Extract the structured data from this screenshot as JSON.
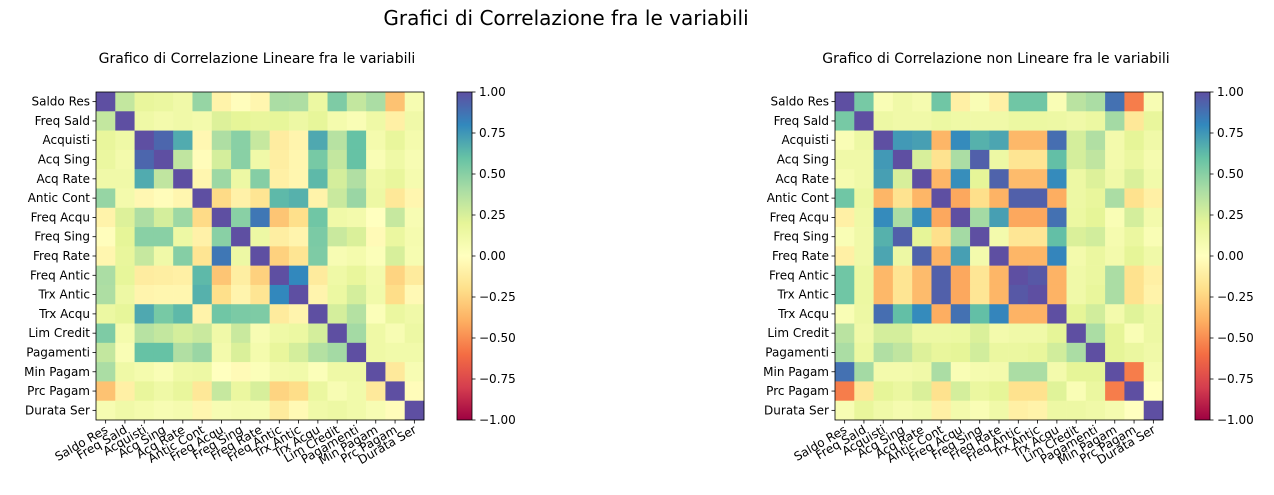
{
  "figure": {
    "suptitle": "Grafici di Correlazione fra le variabili",
    "colormap": [
      "#9e0142",
      "#d53e4f",
      "#f46d43",
      "#fdae61",
      "#fee08b",
      "#ffffbf",
      "#e6f598",
      "#abdda4",
      "#66c2a5",
      "#3288bd",
      "#5e4fa2"
    ]
  },
  "chart_data": [
    {
      "type": "heatmap",
      "title": "Grafico di Correlazione Lineare fra le variabili",
      "labels": [
        "Saldo Res",
        "Freq Sald",
        "Acquisti",
        "Acq Sing",
        "Acq Rate",
        "Antic Cont",
        "Freq Acqu",
        "Freq Sing",
        "Freq Rate",
        "Freq Antic",
        "Trx Antic",
        "Trx Acqu",
        "Lim Credit",
        "Pagamenti",
        "Min Pagam",
        "Prc Pagam",
        "Durata Ser"
      ],
      "vmin": -1,
      "vmax": 1,
      "colorbar_ticks": [
        "1.00",
        "0.75",
        "0.50",
        "0.25",
        "0.00",
        "−0.25",
        "−0.50",
        "−0.75",
        "−1.00"
      ],
      "matrix": [
        [
          1.0,
          0.32,
          0.18,
          0.16,
          0.12,
          0.46,
          -0.08,
          -0.01,
          -0.06,
          0.4,
          0.39,
          0.15,
          0.53,
          0.32,
          0.4,
          -0.32,
          0.07
        ],
        [
          0.32,
          1.0,
          0.13,
          0.1,
          0.12,
          0.1,
          0.23,
          0.2,
          0.18,
          0.19,
          0.14,
          0.19,
          0.09,
          0.05,
          0.13,
          -0.1,
          0.12
        ],
        [
          0.18,
          0.13,
          1.0,
          0.92,
          0.68,
          -0.05,
          0.39,
          0.5,
          0.31,
          -0.12,
          -0.07,
          0.69,
          0.36,
          0.6,
          0.09,
          0.18,
          0.09
        ],
        [
          0.16,
          0.1,
          0.92,
          1.0,
          0.33,
          -0.02,
          0.26,
          0.5,
          0.12,
          -0.11,
          -0.06,
          0.55,
          0.32,
          0.6,
          0.05,
          0.13,
          0.06
        ],
        [
          0.12,
          0.12,
          0.68,
          0.33,
          1.0,
          -0.06,
          0.44,
          0.14,
          0.51,
          -0.1,
          -0.06,
          0.63,
          0.26,
          0.38,
          0.13,
          0.18,
          0.08
        ],
        [
          0.46,
          0.1,
          -0.05,
          -0.02,
          -0.06,
          1.0,
          -0.22,
          -0.09,
          -0.17,
          0.63,
          0.66,
          -0.08,
          0.3,
          0.45,
          0.14,
          -0.15,
          -0.06
        ],
        [
          -0.08,
          0.23,
          0.39,
          0.26,
          0.44,
          -0.22,
          1.0,
          0.5,
          0.86,
          -0.31,
          -0.2,
          0.57,
          0.12,
          0.1,
          0.0,
          0.31,
          0.06
        ],
        [
          -0.01,
          0.2,
          0.5,
          0.5,
          0.14,
          -0.09,
          0.5,
          1.0,
          0.14,
          -0.11,
          -0.07,
          0.54,
          0.3,
          0.24,
          -0.03,
          0.16,
          0.08
        ],
        [
          -0.06,
          0.18,
          0.31,
          0.12,
          0.51,
          -0.17,
          0.86,
          0.14,
          1.0,
          -0.26,
          -0.17,
          0.53,
          0.06,
          0.09,
          0.03,
          0.25,
          0.07
        ],
        [
          0.4,
          0.19,
          -0.12,
          -0.11,
          -0.1,
          0.63,
          -0.31,
          -0.11,
          -0.26,
          1.0,
          0.8,
          -0.13,
          0.13,
          0.18,
          0.1,
          -0.25,
          -0.13
        ],
        [
          0.39,
          0.14,
          -0.07,
          -0.06,
          -0.06,
          0.66,
          -0.2,
          -0.07,
          -0.17,
          0.8,
          1.0,
          -0.07,
          0.15,
          0.26,
          0.11,
          -0.21,
          -0.04
        ],
        [
          0.15,
          0.19,
          0.69,
          0.55,
          0.63,
          -0.08,
          0.57,
          0.54,
          0.53,
          -0.13,
          -0.07,
          1.0,
          0.26,
          0.37,
          0.03,
          0.16,
          0.12
        ],
        [
          0.53,
          0.09,
          0.36,
          0.32,
          0.26,
          0.3,
          0.12,
          0.3,
          0.06,
          0.13,
          0.15,
          0.26,
          1.0,
          0.42,
          0.13,
          0.06,
          0.14
        ],
        [
          0.32,
          0.05,
          0.6,
          0.6,
          0.38,
          0.45,
          0.1,
          0.24,
          0.09,
          0.18,
          0.26,
          0.37,
          0.42,
          1.0,
          0.13,
          0.11,
          0.11
        ],
        [
          0.4,
          0.13,
          0.09,
          0.05,
          0.13,
          0.14,
          0.0,
          -0.03,
          0.03,
          0.1,
          0.11,
          0.03,
          0.13,
          0.13,
          1.0,
          -0.14,
          0.06
        ],
        [
          -0.32,
          -0.1,
          0.18,
          0.13,
          0.18,
          -0.15,
          0.31,
          0.16,
          0.25,
          -0.25,
          -0.21,
          0.16,
          0.06,
          0.11,
          -0.14,
          1.0,
          -0.02
        ],
        [
          0.07,
          0.12,
          0.09,
          0.06,
          0.08,
          -0.06,
          0.06,
          0.08,
          0.07,
          -0.13,
          -0.04,
          0.12,
          0.14,
          0.11,
          0.06,
          -0.02,
          1.0
        ]
      ]
    },
    {
      "type": "heatmap",
      "title": "Grafico di Correlazione non Lineare fra le variabili",
      "labels": [
        "Saldo Res",
        "Freq Sald",
        "Acquisti",
        "Acq Sing",
        "Acq Rate",
        "Antic Cont",
        "Freq Acqu",
        "Freq Sing",
        "Freq Rate",
        "Freq Antic",
        "Trx Antic",
        "Trx Acqu",
        "Lim Credit",
        "Pagamenti",
        "Min Pagam",
        "Prc Pagam",
        "Durata Ser"
      ],
      "vmin": -1,
      "vmax": 1,
      "colorbar_ticks": [
        "1.00",
        "0.75",
        "0.50",
        "0.25",
        "0.00",
        "−0.25",
        "−0.50",
        "−0.75",
        "−1.00"
      ],
      "matrix": [
        [
          1.0,
          0.55,
          0.05,
          0.12,
          0.08,
          0.57,
          -0.1,
          0.05,
          -0.1,
          0.57,
          0.57,
          0.05,
          0.35,
          0.4,
          0.88,
          -0.55,
          0.06
        ],
        [
          0.55,
          1.0,
          0.14,
          0.12,
          0.12,
          0.15,
          0.13,
          0.12,
          0.12,
          0.15,
          0.15,
          0.14,
          0.12,
          0.15,
          0.42,
          -0.15,
          0.18
        ],
        [
          0.05,
          0.14,
          1.0,
          0.74,
          0.72,
          -0.37,
          0.79,
          0.66,
          0.7,
          -0.36,
          -0.36,
          0.89,
          0.26,
          0.38,
          0.1,
          0.2,
          0.12
        ],
        [
          0.12,
          0.12,
          0.74,
          1.0,
          0.25,
          -0.18,
          0.4,
          0.94,
          0.14,
          -0.17,
          -0.17,
          0.61,
          0.26,
          0.33,
          0.1,
          0.16,
          0.08
        ],
        [
          0.08,
          0.12,
          0.72,
          0.25,
          1.0,
          -0.37,
          0.78,
          0.2,
          0.93,
          -0.35,
          -0.35,
          0.79,
          0.14,
          0.23,
          0.12,
          0.24,
          0.11
        ],
        [
          0.57,
          0.15,
          -0.37,
          -0.18,
          -0.37,
          1.0,
          -0.42,
          -0.2,
          -0.38,
          0.94,
          0.94,
          -0.4,
          0.14,
          0.18,
          0.4,
          -0.19,
          -0.1
        ],
        [
          -0.1,
          0.13,
          0.79,
          0.4,
          0.78,
          -0.42,
          1.0,
          0.42,
          0.72,
          -0.42,
          -0.42,
          0.88,
          0.15,
          0.2,
          0.05,
          0.26,
          0.1
        ],
        [
          0.05,
          0.12,
          0.66,
          0.94,
          0.2,
          -0.2,
          0.42,
          1.0,
          0.1,
          -0.16,
          -0.16,
          0.61,
          0.24,
          0.27,
          0.08,
          0.16,
          0.05
        ],
        [
          -0.1,
          0.12,
          0.7,
          0.14,
          0.93,
          -0.38,
          0.72,
          0.1,
          1.0,
          -0.37,
          -0.37,
          0.81,
          0.1,
          0.16,
          0.1,
          0.2,
          0.12
        ],
        [
          0.57,
          0.15,
          -0.36,
          -0.17,
          -0.35,
          0.94,
          -0.42,
          -0.16,
          -0.37,
          1.0,
          0.97,
          -0.38,
          0.12,
          0.16,
          0.4,
          -0.19,
          -0.1
        ],
        [
          0.57,
          0.15,
          -0.36,
          -0.17,
          -0.35,
          0.94,
          -0.42,
          -0.16,
          -0.37,
          0.97,
          1.0,
          -0.38,
          0.12,
          0.18,
          0.4,
          -0.19,
          -0.08
        ],
        [
          0.05,
          0.14,
          0.89,
          0.61,
          0.79,
          -0.4,
          0.88,
          0.61,
          0.81,
          -0.38,
          -0.38,
          1.0,
          0.2,
          0.27,
          0.1,
          0.22,
          0.14
        ],
        [
          0.35,
          0.12,
          0.26,
          0.26,
          0.14,
          0.14,
          0.15,
          0.24,
          0.1,
          0.12,
          0.12,
          0.2,
          1.0,
          0.4,
          0.2,
          0.05,
          0.14
        ],
        [
          0.4,
          0.15,
          0.38,
          0.33,
          0.23,
          0.18,
          0.2,
          0.27,
          0.16,
          0.16,
          0.18,
          0.27,
          0.4,
          1.0,
          0.2,
          0.16,
          0.12
        ],
        [
          0.88,
          0.42,
          0.1,
          0.1,
          0.12,
          0.4,
          0.05,
          0.08,
          0.1,
          0.4,
          0.4,
          0.1,
          0.2,
          0.2,
          1.0,
          -0.55,
          0.08
        ],
        [
          -0.55,
          -0.15,
          0.2,
          0.16,
          0.24,
          -0.19,
          0.26,
          0.16,
          0.2,
          -0.19,
          -0.19,
          0.22,
          0.05,
          0.16,
          -0.55,
          1.0,
          0.0
        ],
        [
          0.06,
          0.18,
          0.12,
          0.08,
          0.11,
          -0.1,
          0.1,
          0.05,
          0.12,
          -0.1,
          -0.08,
          0.14,
          0.14,
          0.12,
          0.08,
          0.0,
          1.0
        ]
      ]
    }
  ]
}
